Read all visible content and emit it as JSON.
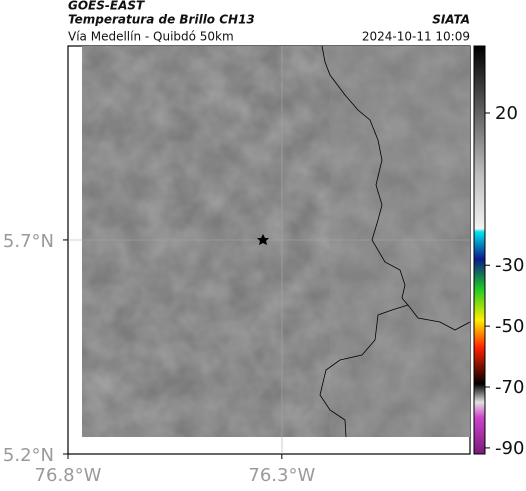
{
  "header": {
    "source": "GOES-EAST",
    "title": "Temperatura de Brillo CH13",
    "org": "SIATA",
    "route": "Vía Medellín - Quibdó 50km",
    "timestamp": "2024-10-11 10:09"
  },
  "map": {
    "xlim": [
      -76.8,
      -75.86
    ],
    "ylim": [
      5.2,
      6.153
    ],
    "xticks": [
      {
        "value": -76.8,
        "label": "76.8°W"
      },
      {
        "value": -76.3,
        "label": "76.3°W"
      }
    ],
    "yticks": [
      {
        "value": 5.7,
        "label": "5.7°N"
      },
      {
        "value": 5.2,
        "label": "5.2°N"
      }
    ]
  },
  "colorbar": {
    "lim": [
      -92,
      42
    ],
    "ticks": [
      20,
      -30,
      -50,
      -70,
      -90
    ],
    "stops": [
      {
        "value": 42,
        "color": "#000000"
      },
      {
        "value": 0,
        "color": "#bdbdbd"
      },
      {
        "value": -18,
        "color": "#f2f2f2"
      },
      {
        "value": -19,
        "color": "#00e5ee"
      },
      {
        "value": -28,
        "color": "#0a1a8a"
      },
      {
        "value": -38,
        "color": "#22cc22"
      },
      {
        "value": -48,
        "color": "#ffee00"
      },
      {
        "value": -57,
        "color": "#ff2200"
      },
      {
        "value": -69,
        "color": "#000000"
      },
      {
        "value": -75,
        "color": "#e0e0e0"
      },
      {
        "value": -80,
        "color": "#cc44cc"
      },
      {
        "value": -92,
        "color": "#7a1a7a"
      }
    ]
  }
}
